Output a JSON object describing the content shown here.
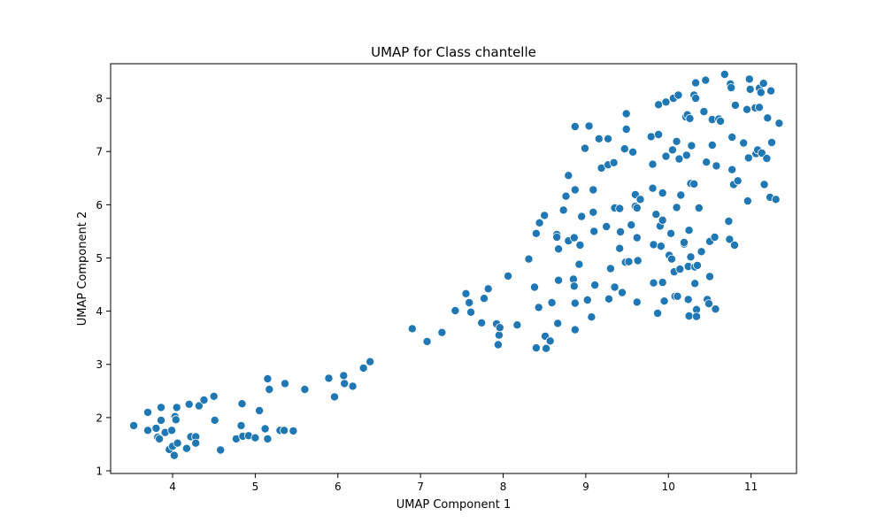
{
  "chart_data": {
    "type": "scatter",
    "title": "UMAP for Class chantelle",
    "xlabel": "UMAP Component 1",
    "ylabel": "UMAP Component 2",
    "xlim": [
      3.25,
      11.55
    ],
    "ylim": [
      0.95,
      8.65
    ],
    "xticks": [
      4,
      5,
      6,
      7,
      8,
      9,
      10,
      11
    ],
    "yticks": [
      1,
      2,
      3,
      4,
      5,
      6,
      7,
      8
    ],
    "grid": false,
    "point_color": "#1f77b4",
    "point_edge_color": "#ffffff",
    "points": [
      [
        3.53,
        1.85
      ],
      [
        3.7,
        2.1
      ],
      [
        3.7,
        1.76
      ],
      [
        3.8,
        1.8
      ],
      [
        3.82,
        1.63
      ],
      [
        3.84,
        1.6
      ],
      [
        3.86,
        2.19
      ],
      [
        3.86,
        1.95
      ],
      [
        3.91,
        1.72
      ],
      [
        3.96,
        1.4
      ],
      [
        3.99,
        1.76
      ],
      [
        4.0,
        1.46
      ],
      [
        4.02,
        1.29
      ],
      [
        4.03,
        2.02
      ],
      [
        4.04,
        1.96
      ],
      [
        4.05,
        2.19
      ],
      [
        4.06,
        1.52
      ],
      [
        4.17,
        1.42
      ],
      [
        4.2,
        2.25
      ],
      [
        4.22,
        1.64
      ],
      [
        4.28,
        1.64
      ],
      [
        4.28,
        1.52
      ],
      [
        4.32,
        2.22
      ],
      [
        4.38,
        2.33
      ],
      [
        4.5,
        2.4
      ],
      [
        4.51,
        1.95
      ],
      [
        4.58,
        1.39
      ],
      [
        4.77,
        1.6
      ],
      [
        4.83,
        1.85
      ],
      [
        4.84,
        2.26
      ],
      [
        4.85,
        1.65
      ],
      [
        4.92,
        1.66
      ],
      [
        5.0,
        1.62
      ],
      [
        5.05,
        2.13
      ],
      [
        5.12,
        1.79
      ],
      [
        5.15,
        2.73
      ],
      [
        5.15,
        1.6
      ],
      [
        5.17,
        2.53
      ],
      [
        5.3,
        1.76
      ],
      [
        5.35,
        1.76
      ],
      [
        5.36,
        2.64
      ],
      [
        5.46,
        1.75
      ],
      [
        5.6,
        2.53
      ],
      [
        5.89,
        2.74
      ],
      [
        5.96,
        2.39
      ],
      [
        6.07,
        2.79
      ],
      [
        6.08,
        2.64
      ],
      [
        6.18,
        2.59
      ],
      [
        6.31,
        2.93
      ],
      [
        6.39,
        3.05
      ],
      [
        6.9,
        3.67
      ],
      [
        7.08,
        3.43
      ],
      [
        7.26,
        3.6
      ],
      [
        7.42,
        4.01
      ],
      [
        7.55,
        4.33
      ],
      [
        7.59,
        4.16
      ],
      [
        7.61,
        3.98
      ],
      [
        7.74,
        3.78
      ],
      [
        7.77,
        4.24
      ],
      [
        7.82,
        4.42
      ],
      [
        7.92,
        3.76
      ],
      [
        7.94,
        3.37
      ],
      [
        7.95,
        3.55
      ],
      [
        7.96,
        3.69
      ],
      [
        8.06,
        4.66
      ],
      [
        8.17,
        3.74
      ],
      [
        8.31,
        4.98
      ],
      [
        8.38,
        4.45
      ],
      [
        8.4,
        5.46
      ],
      [
        8.4,
        3.31
      ],
      [
        8.43,
        4.07
      ],
      [
        8.44,
        5.66
      ],
      [
        8.5,
        5.8
      ],
      [
        8.51,
        3.53
      ],
      [
        8.52,
        3.3
      ],
      [
        8.57,
        3.44
      ],
      [
        8.59,
        4.16
      ],
      [
        8.65,
        5.44
      ],
      [
        8.65,
        5.39
      ],
      [
        8.66,
        3.77
      ],
      [
        8.67,
        5.17
      ],
      [
        8.67,
        4.58
      ],
      [
        8.73,
        5.9
      ],
      [
        8.76,
        6.16
      ],
      [
        8.79,
        6.55
      ],
      [
        8.79,
        5.32
      ],
      [
        8.85,
        4.6
      ],
      [
        8.86,
        5.38
      ],
      [
        8.86,
        4.47
      ],
      [
        8.87,
        7.47
      ],
      [
        8.87,
        6.28
      ],
      [
        8.87,
        3.65
      ],
      [
        8.87,
        4.15
      ],
      [
        8.92,
        4.88
      ],
      [
        8.93,
        5.24
      ],
      [
        8.95,
        5.78
      ],
      [
        8.99,
        7.06
      ],
      [
        9.02,
        4.21
      ],
      [
        9.04,
        7.48
      ],
      [
        9.07,
        3.89
      ],
      [
        9.09,
        5.86
      ],
      [
        9.09,
        6.28
      ],
      [
        9.1,
        5.5
      ],
      [
        9.11,
        4.49
      ],
      [
        9.16,
        7.24
      ],
      [
        9.19,
        6.69
      ],
      [
        9.25,
        5.59
      ],
      [
        9.27,
        7.24
      ],
      [
        9.27,
        6.75
      ],
      [
        9.28,
        4.23
      ],
      [
        9.3,
        4.8
      ],
      [
        9.34,
        6.79
      ],
      [
        9.35,
        4.45
      ],
      [
        9.35,
        5.94
      ],
      [
        9.41,
        5.93
      ],
      [
        9.41,
        5.18
      ],
      [
        9.42,
        5.49
      ],
      [
        9.44,
        4.35
      ],
      [
        9.47,
        7.05
      ],
      [
        9.48,
        4.92
      ],
      [
        9.49,
        7.71
      ],
      [
        9.49,
        7.42
      ],
      [
        9.52,
        4.93
      ],
      [
        9.55,
        5.62
      ],
      [
        9.57,
        6.99
      ],
      [
        9.6,
        6.19
      ],
      [
        9.6,
        5.97
      ],
      [
        9.62,
        5.94
      ],
      [
        9.62,
        5.38
      ],
      [
        9.62,
        4.17
      ],
      [
        9.63,
        4.95
      ],
      [
        9.66,
        6.1
      ],
      [
        9.79,
        7.28
      ],
      [
        9.81,
        6.76
      ],
      [
        9.81,
        6.31
      ],
      [
        9.82,
        5.25
      ],
      [
        9.82,
        4.53
      ],
      [
        9.85,
        5.82
      ],
      [
        9.87,
        3.96
      ],
      [
        9.88,
        7.88
      ],
      [
        9.88,
        7.32
      ],
      [
        9.9,
        5.6
      ],
      [
        9.91,
        5.22
      ],
      [
        9.93,
        6.22
      ],
      [
        9.93,
        5.71
      ],
      [
        9.93,
        4.54
      ],
      [
        9.95,
        4.19
      ],
      [
        9.97,
        7.93
      ],
      [
        9.97,
        6.91
      ],
      [
        10.01,
        5.05
      ],
      [
        10.03,
        5.46
      ],
      [
        10.04,
        4.98
      ],
      [
        10.05,
        7.03
      ],
      [
        10.06,
        8.0
      ],
      [
        10.07,
        4.74
      ],
      [
        10.08,
        4.28
      ],
      [
        10.1,
        7.19
      ],
      [
        10.1,
        5.95
      ],
      [
        10.11,
        4.28
      ],
      [
        10.12,
        8.06
      ],
      [
        10.13,
        6.86
      ],
      [
        10.14,
        4.79
      ],
      [
        10.15,
        6.18
      ],
      [
        10.19,
        5.26
      ],
      [
        10.19,
        5.29
      ],
      [
        10.21,
        7.65
      ],
      [
        10.22,
        6.93
      ],
      [
        10.23,
        7.69
      ],
      [
        10.24,
        4.84
      ],
      [
        10.24,
        4.22
      ],
      [
        10.25,
        3.91
      ],
      [
        10.25,
        5.52
      ],
      [
        10.26,
        7.62
      ],
      [
        10.27,
        5.02
      ],
      [
        10.27,
        6.4
      ],
      [
        10.28,
        7.11
      ],
      [
        10.31,
        6.39
      ],
      [
        10.31,
        8.06
      ],
      [
        10.32,
        4.83
      ],
      [
        10.32,
        4.52
      ],
      [
        10.33,
        8.0
      ],
      [
        10.33,
        8.29
      ],
      [
        10.34,
        4.03
      ],
      [
        10.34,
        3.9
      ],
      [
        10.35,
        4.86
      ],
      [
        10.37,
        5.94
      ],
      [
        10.4,
        5.12
      ],
      [
        10.43,
        7.75
      ],
      [
        10.45,
        8.34
      ],
      [
        10.46,
        6.8
      ],
      [
        10.47,
        4.22
      ],
      [
        10.49,
        4.14
      ],
      [
        10.5,
        4.65
      ],
      [
        10.5,
        5.31
      ],
      [
        10.53,
        7.12
      ],
      [
        10.53,
        7.6
      ],
      [
        10.56,
        5.39
      ],
      [
        10.57,
        4.04
      ],
      [
        10.58,
        6.73
      ],
      [
        10.61,
        7.61
      ],
      [
        10.63,
        7.57
      ],
      [
        10.68,
        8.45
      ],
      [
        10.73,
        5.69
      ],
      [
        10.74,
        5.35
      ],
      [
        10.75,
        8.27
      ],
      [
        10.76,
        8.2
      ],
      [
        10.77,
        7.27
      ],
      [
        10.77,
        6.66
      ],
      [
        10.79,
        6.38
      ],
      [
        10.8,
        5.24
      ],
      [
        10.81,
        7.87
      ],
      [
        10.84,
        6.45
      ],
      [
        10.91,
        7.16
      ],
      [
        10.95,
        7.79
      ],
      [
        10.96,
        6.07
      ],
      [
        10.97,
        6.88
      ],
      [
        10.98,
        8.36
      ],
      [
        10.99,
        8.17
      ],
      [
        11.05,
        7.82
      ],
      [
        11.06,
        6.96
      ],
      [
        11.08,
        7.03
      ],
      [
        11.1,
        7.83
      ],
      [
        11.1,
        8.19
      ],
      [
        11.12,
        8.11
      ],
      [
        11.13,
        6.97
      ],
      [
        11.15,
        8.28
      ],
      [
        11.16,
        6.38
      ],
      [
        11.19,
        6.87
      ],
      [
        11.2,
        7.63
      ],
      [
        11.23,
        6.14
      ],
      [
        11.24,
        8.14
      ],
      [
        11.25,
        7.17
      ],
      [
        11.3,
        6.1
      ],
      [
        11.34,
        7.53
      ]
    ]
  }
}
